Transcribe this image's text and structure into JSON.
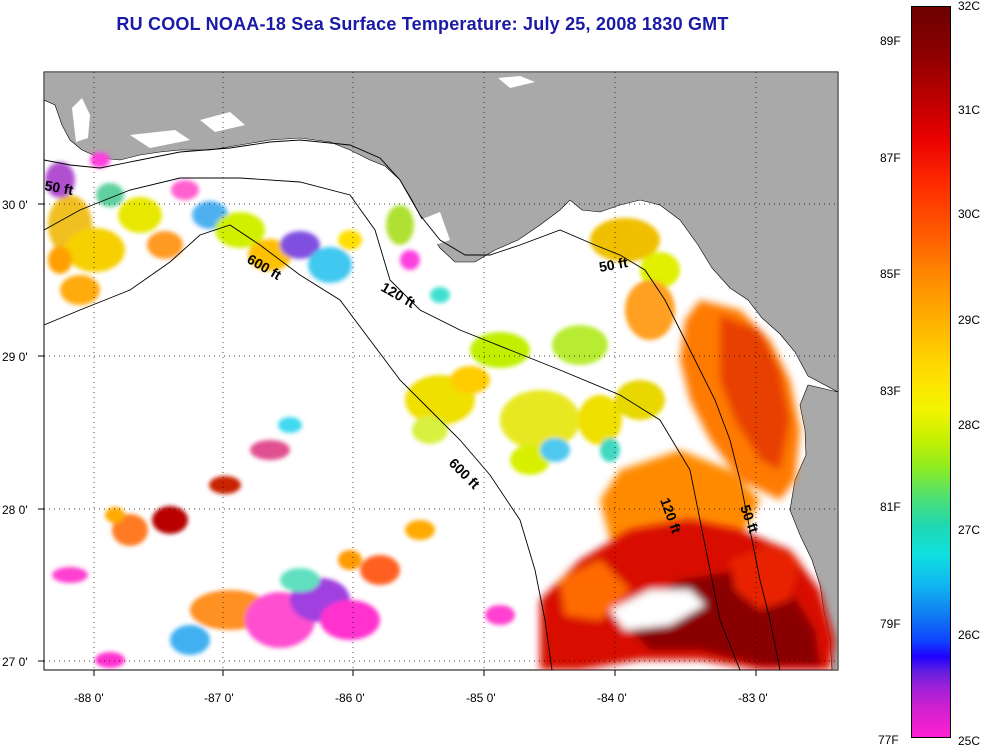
{
  "title": "RU COOL  NOAA-18  Sea Surface Temperature:  July 25, 2008 1830 GMT",
  "map": {
    "lon_ticks": [
      "-88 0'",
      "-87 0'",
      "-86 0'",
      "-85 0'",
      "-84 0'",
      "-83 0'"
    ],
    "lat_ticks": [
      "30 0'",
      "29 0'",
      "28 0'",
      "27 0'"
    ],
    "contours": [
      {
        "label": "50 ft",
        "id": "contour-50-nw"
      },
      {
        "label": "600 ft",
        "id": "contour-600-north"
      },
      {
        "label": "120 ft",
        "id": "contour-120-north"
      },
      {
        "label": "50 ft",
        "id": "contour-50-ne"
      },
      {
        "label": "600 ft",
        "id": "contour-600-south"
      },
      {
        "label": "120 ft",
        "id": "contour-120-south"
      },
      {
        "label": "50 ft",
        "id": "contour-50-se"
      }
    ],
    "colors": {
      "land": "#a9a9a9",
      "no_data": "#ffffff",
      "title": "#1a1aa6"
    }
  },
  "colorbar": {
    "celsius": [
      "32C",
      "31C",
      "30C",
      "29C",
      "28C",
      "27C",
      "26C",
      "25C"
    ],
    "fahrenheit": [
      "89F",
      "87F",
      "85F",
      "83F",
      "81F",
      "79F",
      "77F"
    ]
  }
}
